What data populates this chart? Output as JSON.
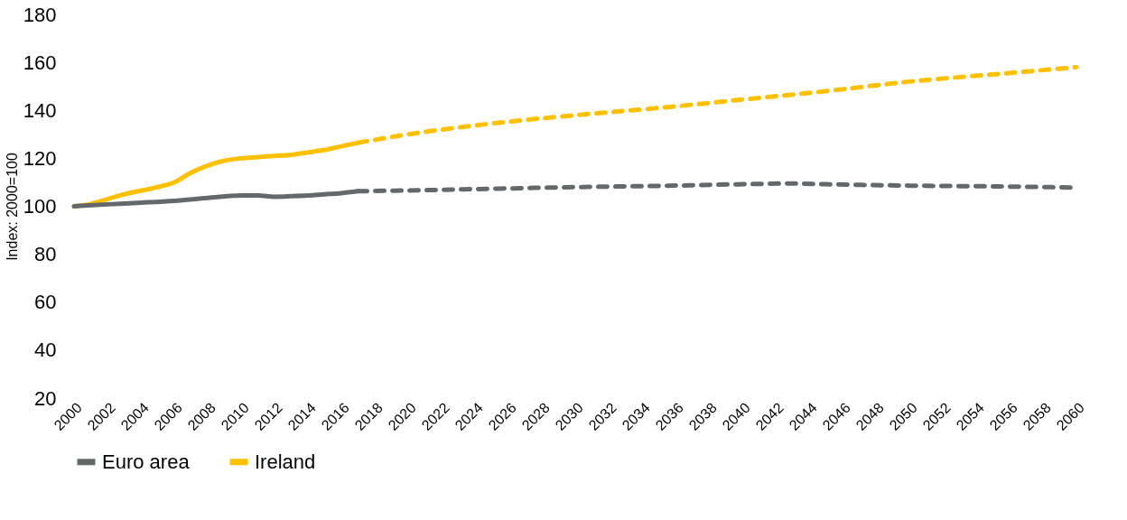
{
  "chart_data": {
    "type": "line",
    "ylabel": "Index: 2000=100",
    "xlim": [
      2000,
      2060
    ],
    "xticks": [
      2000,
      2002,
      2004,
      2006,
      2008,
      2010,
      2012,
      2014,
      2016,
      2018,
      2020,
      2022,
      2024,
      2026,
      2028,
      2030,
      2032,
      2034,
      2036,
      2038,
      2040,
      2042,
      2044,
      2046,
      2048,
      2050,
      2052,
      2054,
      2056,
      2058,
      2060
    ],
    "ylim": [
      20,
      180
    ],
    "yticks": [
      20,
      40,
      60,
      80,
      100,
      120,
      140,
      160,
      180
    ],
    "grid": false,
    "legend": "bottom",
    "series": [
      {
        "name": "Euro area",
        "color": "#63686b",
        "line_style": "solid",
        "x": [
          2000,
          2002,
          2004,
          2006,
          2008,
          2010,
          2011,
          2012,
          2013,
          2014,
          2015,
          2016,
          2017
        ],
        "values": [
          100,
          100.8,
          101.5,
          102.3,
          103.5,
          104.5,
          104.5,
          104,
          104.2,
          104.5,
          105,
          105.5,
          106.3
        ]
      },
      {
        "name": "Ireland",
        "color": "#ffc000",
        "line_style": "solid",
        "x": [
          2000,
          2001,
          2002,
          2003,
          2004,
          2005,
          2006,
          2007,
          2008,
          2009,
          2010,
          2011,
          2012,
          2013,
          2014,
          2015,
          2016,
          2017
        ],
        "values": [
          100,
          101,
          103,
          105,
          106.5,
          108,
          110,
          114,
          117,
          119,
          120,
          120.5,
          121,
          121.5,
          122.5,
          123.5,
          125,
          126.5
        ]
      },
      {
        "color": "#63686b",
        "line_style": "dashed",
        "x": [
          2017,
          2020,
          2025,
          2030,
          2035,
          2040,
          2043,
          2045,
          2050,
          2055,
          2060
        ],
        "values": [
          106.3,
          106.6,
          107.3,
          108,
          108.5,
          109.2,
          109.5,
          109.2,
          108.6,
          108.3,
          107.8
        ]
      },
      {
        "color": "#ffc000",
        "line_style": "dashed",
        "x": [
          2017,
          2020,
          2025,
          2030,
          2035,
          2040,
          2045,
          2050,
          2055,
          2060
        ],
        "values": [
          126.5,
          130,
          134.5,
          138,
          141,
          144.5,
          148,
          152,
          155,
          158
        ]
      }
    ]
  }
}
